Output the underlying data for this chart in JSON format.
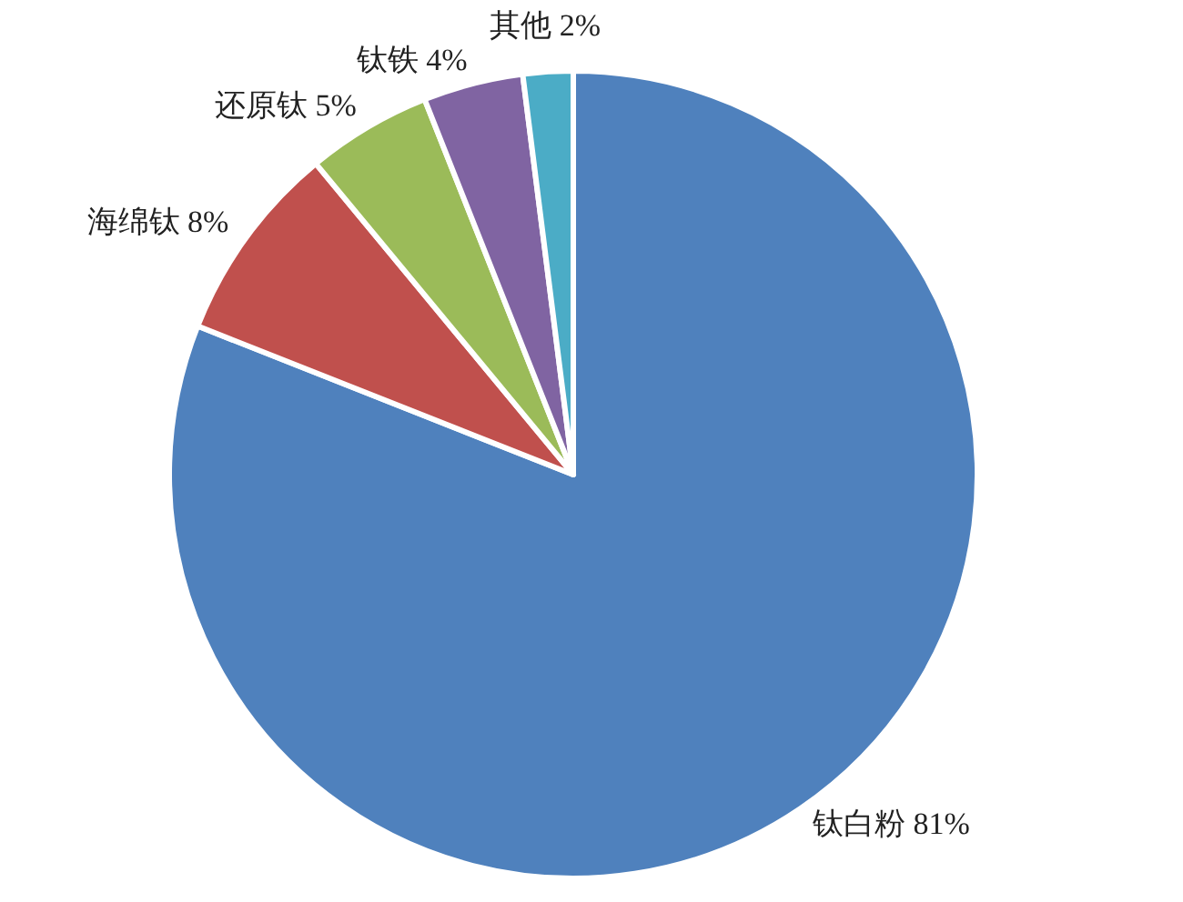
{
  "chart_data": {
    "type": "pie",
    "categories": [
      "钛白粉",
      "海绵钛",
      "还原钛",
      "钛铁",
      "其他"
    ],
    "values": [
      81,
      8,
      5,
      4,
      2
    ],
    "colors": [
      "#4f81bd",
      "#c0504d",
      "#9bbb59",
      "#8064a2",
      "#4bacc6"
    ],
    "value_labels": [
      "81%",
      "8%",
      "5%",
      "4%",
      "2%"
    ]
  }
}
